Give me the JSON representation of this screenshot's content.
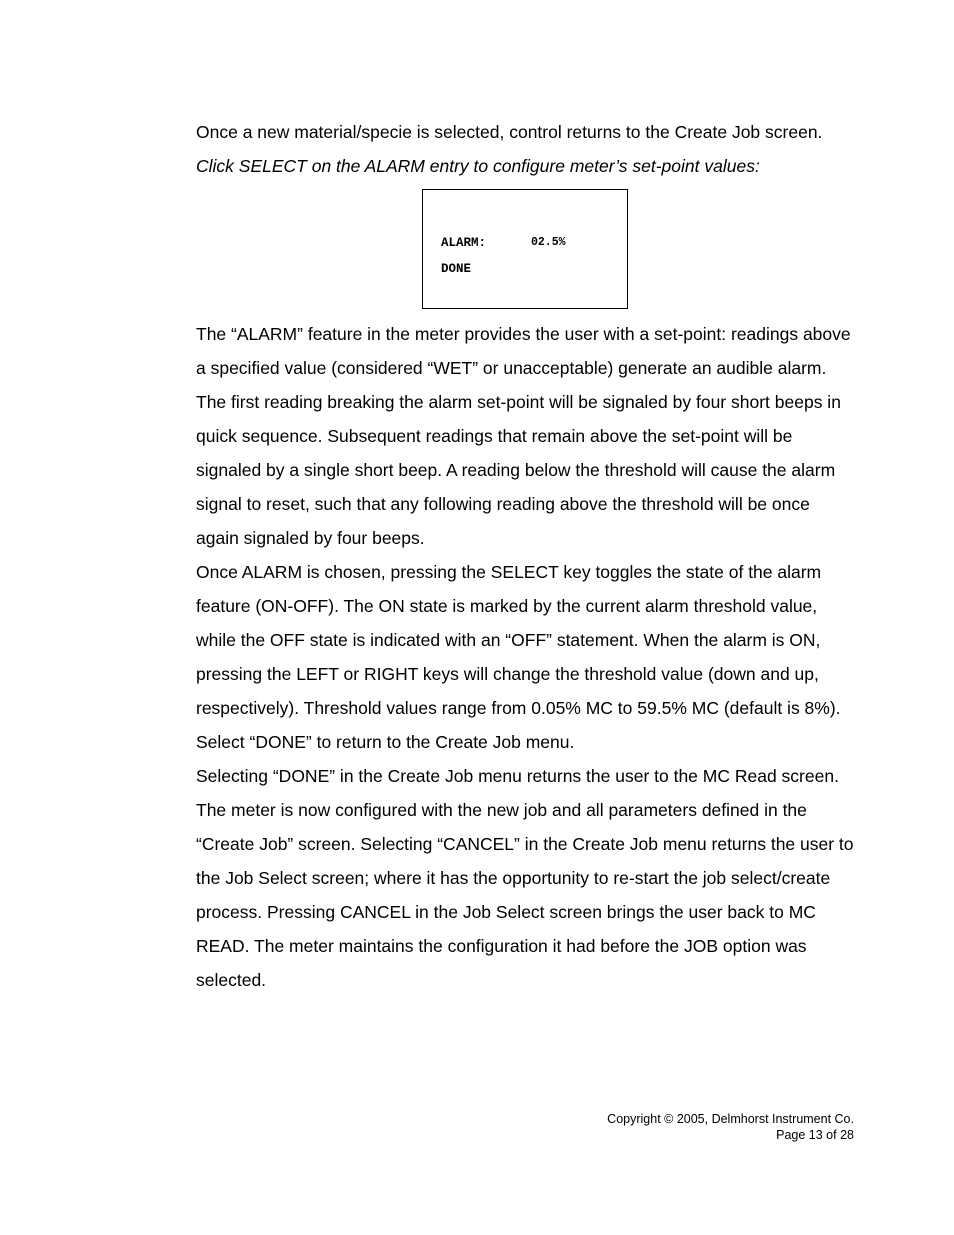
{
  "para_intro": "Once a new material/specie is selected, control returns to the Create Job screen.",
  "para_click": "Click SELECT on the ALARM entry to configure meter’s set-point values:",
  "screen": {
    "alarm_label": "ALARM:",
    "alarm_value": "02.5%",
    "done_label": "DONE"
  },
  "para_alarm_feature": "The “ALARM” feature in the meter provides the user with a set-point: readings above a specified value (considered “WET” or unacceptable) generate an audible alarm.",
  "para_first_reading": "The first reading breaking the alarm set-point will be signaled by four short beeps in quick sequence. Subsequent readings that remain above the set-point will be signaled by a single short beep.  A reading below the threshold will cause the alarm signal to reset, such that any following reading above the threshold will be once again signaled by four beeps.",
  "para_once_alarm": "Once ALARM is chosen, pressing the SELECT key toggles the state of the alarm feature (ON-OFF). The ON state is marked by the current alarm threshold value, while the OFF state is indicated with an “OFF” statement. When the alarm is ON, pressing the LEFT or RIGHT keys will change the threshold value (down and up, respectively). Threshold values range from 0.05% MC to 59.5% MC (default is 8%).",
  "para_select_done": "Select “DONE” to return to the Create Job menu.",
  "para_selecting_done": "Selecting “DONE” in the Create Job menu returns the user to the MC Read screen. The meter is now configured with the new job and all parameters defined in the “Create Job” screen. Selecting “CANCEL” in the Create Job menu returns the user to the Job Select screen; where it has the opportunity to re-start the job select/create process. Pressing CANCEL in the Job Select screen brings the user back to MC READ. The meter maintains the configuration it had before the JOB option was selected.",
  "footer": {
    "copyright": "Copyright © 2005, Delmhorst Instrument Co.",
    "page": "Page 13 of 28"
  }
}
